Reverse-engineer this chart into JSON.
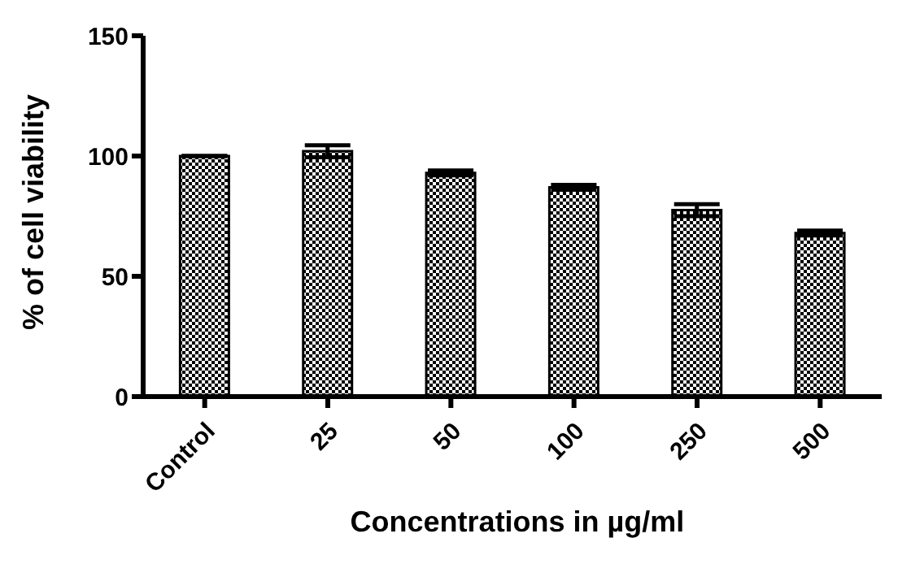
{
  "chart_data": {
    "type": "bar",
    "xlabel": "Concentrations in µg/ml",
    "ylabel": "% of cell viability",
    "categories": [
      "Control",
      "25",
      "50",
      "100",
      "250",
      "500"
    ],
    "values": [
      100,
      102,
      93,
      87,
      77.5,
      68
    ],
    "errors": [
      null,
      2.5,
      1,
      1,
      2.5,
      1
    ],
    "color": "#000000",
    "ylim": [
      0,
      150
    ],
    "yticks": [
      0,
      50,
      100,
      150
    ],
    "grid": false,
    "legend": false
  }
}
